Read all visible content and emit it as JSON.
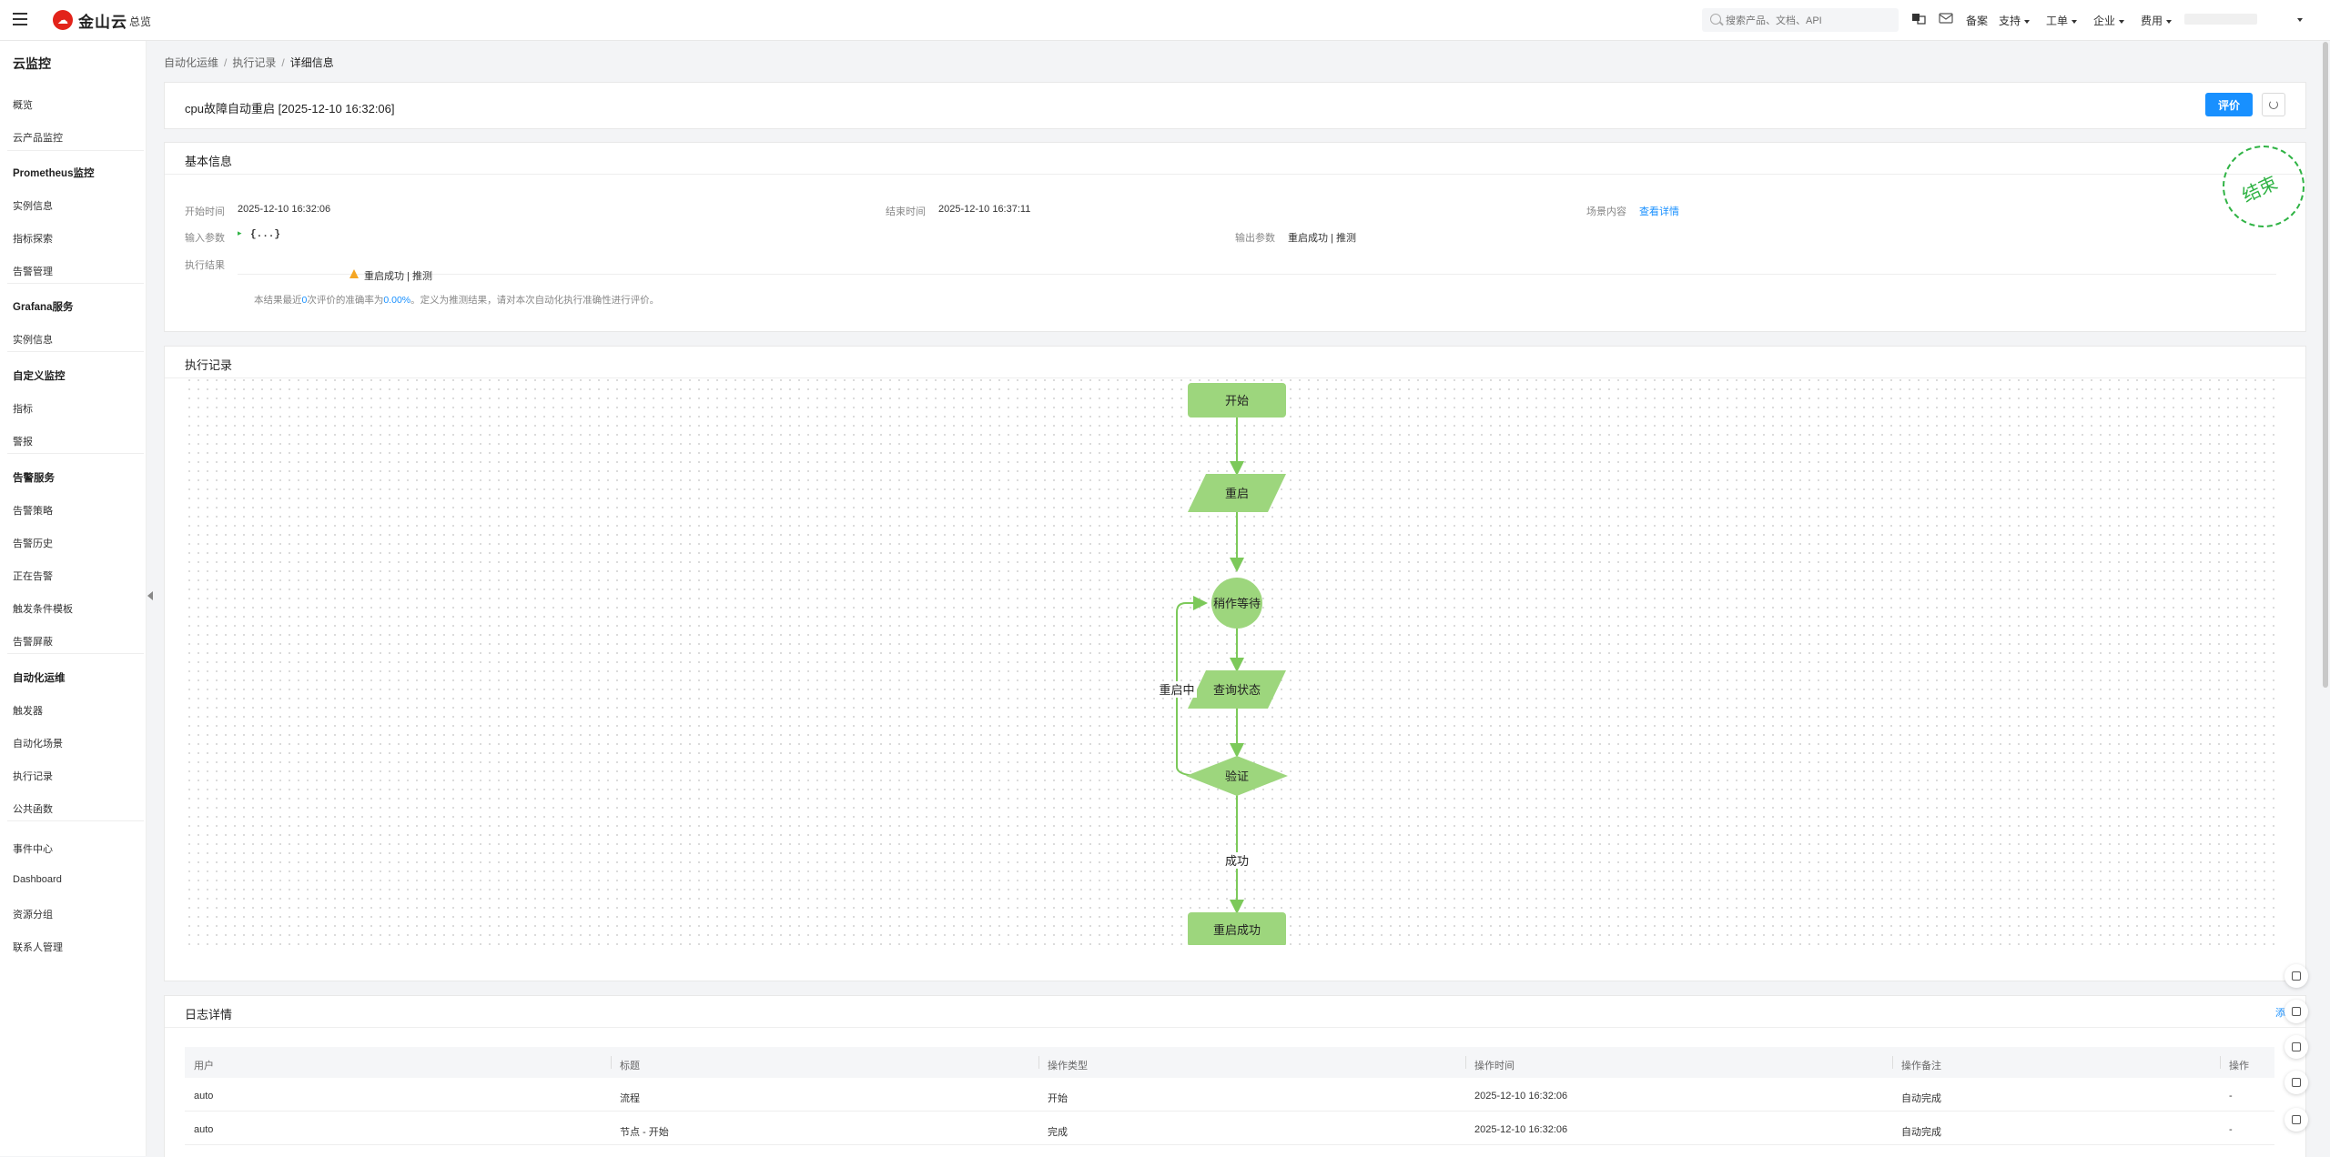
{
  "topbar": {
    "logo_text": "金山云",
    "overview": "总览",
    "search_placeholder": "搜索产品、文档、API",
    "nav": {
      "record": "备案",
      "support": "支持",
      "ticket": "工单",
      "enterprise": "企业",
      "billing": "费用"
    }
  },
  "sidebar": {
    "title": "云监控",
    "overview": "概览",
    "cloud_product": "云产品监控",
    "prometheus": {
      "title": "Prometheus监控",
      "items": [
        "实例信息",
        "指标探索",
        "告警管理"
      ]
    },
    "grafana": {
      "title": "Grafana服务",
      "items": [
        "实例信息"
      ]
    },
    "custom": {
      "title": "自定义监控",
      "items": [
        "指标",
        "警报"
      ]
    },
    "alarm": {
      "title": "告警服务",
      "items": [
        "告警策略",
        "告警历史",
        "正在告警",
        "触发条件模板",
        "告警屏蔽"
      ]
    },
    "automation": {
      "title": "自动化运维",
      "items": [
        "触发器",
        "自动化场景",
        "执行记录",
        "公共函数"
      ]
    },
    "bottom": [
      "事件中心",
      "Dashboard",
      "资源分组",
      "联系人管理"
    ]
  },
  "breadcrumb": {
    "a": "自动化运维",
    "b": "执行记录",
    "c": "详细信息"
  },
  "header": {
    "title": "cpu故障自动重启 [2025-12-10 16:32:06]",
    "eval_button": "评价"
  },
  "basic": {
    "title": "基本信息",
    "start_label": "开始时间",
    "start_value": "2025-12-10 16:32:06",
    "end_label": "结束时间",
    "end_value": "2025-12-10 16:37:11",
    "scene_label": "场景内容",
    "scene_link": "查看详情",
    "input_label": "输入参数",
    "input_value": "{...}",
    "output_label": "输出参数",
    "output_value": "重启成功 | 推测",
    "result_label": "执行结果",
    "result_value": "重启成功 | 推测",
    "note_prefix": "本结果最近",
    "note_count": "0",
    "note_mid": "次评价的准确率为",
    "note_rate": "0.00%",
    "note_suffix": "。定义为推测结果，请对本次自动化执行准确性进行评价。",
    "stamp": "结束"
  },
  "flow": {
    "title": "执行记录",
    "nodes": {
      "start": "开始",
      "restart": "重启",
      "wait": "稍作等待",
      "query": "查询状态",
      "verify": "验证",
      "success": "重启成功"
    },
    "edges": {
      "restarting": "重启中",
      "succeeded": "成功"
    },
    "colors": {
      "node_fill": "#9dd67d",
      "edge": "#7cc95a"
    }
  },
  "log": {
    "title": "日志详情",
    "add_link": "添",
    "columns": [
      "用户",
      "标题",
      "操作类型",
      "操作时间",
      "操作备注",
      "操作"
    ],
    "rows": [
      [
        "auto",
        "流程",
        "开始",
        "2025-12-10 16:32:06",
        "自动完成",
        "-"
      ],
      [
        "auto",
        "节点 - 开始",
        "完成",
        "2025-12-10 16:32:06",
        "自动完成",
        "-"
      ]
    ]
  }
}
